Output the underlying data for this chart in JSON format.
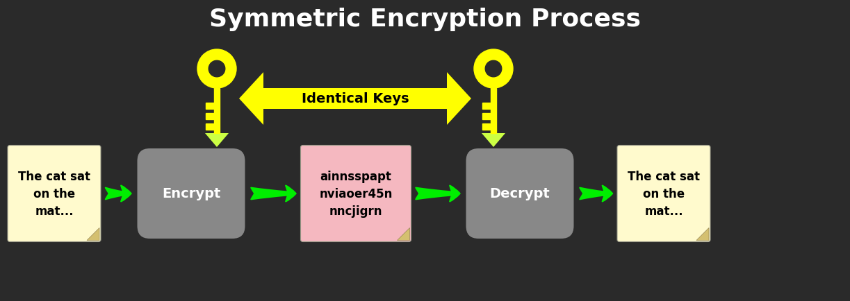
{
  "title": "Symmetric Encryption Process",
  "title_color": "#ffffff",
  "title_fontsize": 26,
  "background_color": "#2a2a2a",
  "note_bg_color": "#fffacd",
  "note_text_color": "#000000",
  "encrypt_box_color": "#888888",
  "decrypt_box_color": "#888888",
  "cipher_box_color": "#f5b8c0",
  "green_arrow_color": "#00ee00",
  "yellow_arrow_color": "#ffff00",
  "yellow_arrow_light": "#ccff44",
  "key_color": "#ffff00",
  "plain_text_left": "The cat sat\non the\nmat...",
  "cipher_text": "ainnsspapt\nnviaoer45n\nnncjigrn",
  "plain_text_right": "The cat sat\non the\nmat...",
  "encrypt_label": "Encrypt",
  "decrypt_label": "Decrypt",
  "identical_keys_label": "Identical Keys",
  "note_curl_color": "#d4c070",
  "figw": 12.23,
  "figh": 4.35,
  "dpi": 100
}
